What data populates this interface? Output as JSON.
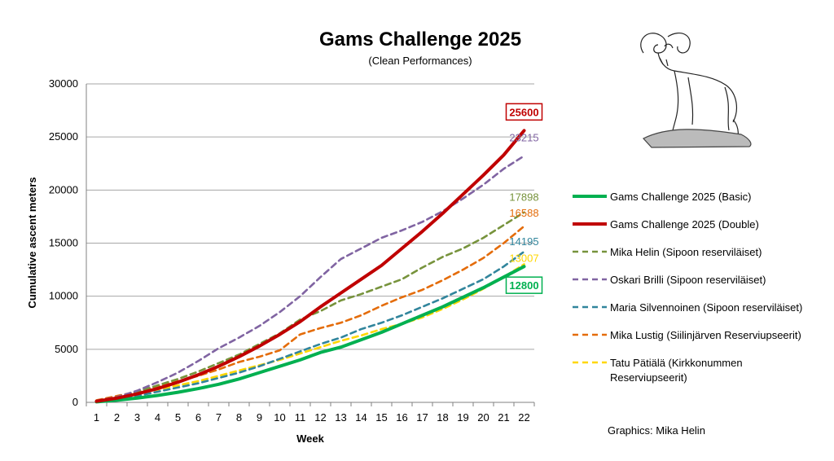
{
  "chart_data": {
    "type": "line",
    "title": "Gams Challenge 2025",
    "subtitle": "(Clean Performances)",
    "xlabel": "Week",
    "ylabel": "Cumulative ascent meters",
    "ylim": [
      0,
      30000
    ],
    "yticks": [
      0,
      5000,
      10000,
      15000,
      20000,
      25000,
      30000
    ],
    "x": [
      1,
      2,
      3,
      4,
      5,
      6,
      7,
      8,
      9,
      10,
      11,
      12,
      13,
      14,
      15,
      16,
      17,
      18,
      19,
      20,
      21,
      22
    ],
    "grid": true,
    "legend_position": "right",
    "series": [
      {
        "name": "Gams Challenge 2025 (Basic)",
        "color": "#00b050",
        "style": "solid",
        "values": [
          50,
          200,
          400,
          650,
          950,
          1300,
          1700,
          2200,
          2800,
          3400,
          4000,
          4700,
          5200,
          5900,
          6600,
          7400,
          8200,
          9000,
          9900,
          10800,
          11800,
          12800
        ],
        "end_label": "12800",
        "end_label_boxed": true
      },
      {
        "name": "Gams Challenge 2025 (Double)",
        "color": "#c00000",
        "style": "solid",
        "values": [
          100,
          400,
          800,
          1300,
          1900,
          2600,
          3400,
          4300,
          5300,
          6400,
          7600,
          9000,
          10300,
          11600,
          12900,
          14500,
          16100,
          17800,
          19600,
          21400,
          23300,
          25600
        ],
        "end_label": "25600",
        "end_label_boxed": true
      },
      {
        "name": "Mika Helin (Sipoon reserviläiset)",
        "color": "#77933c",
        "style": "dashed",
        "values": [
          100,
          500,
          1000,
          1600,
          2200,
          2900,
          3700,
          4500,
          5500,
          6500,
          7800,
          8600,
          9600,
          10200,
          10900,
          11600,
          12700,
          13700,
          14500,
          15500,
          16700,
          17898
        ],
        "end_label": "17898"
      },
      {
        "name": "Oskari Brilli (Sipoon reserviläiset)",
        "color": "#8064a2",
        "style": "dashed",
        "values": [
          150,
          500,
          1100,
          1900,
          2800,
          3900,
          5100,
          6100,
          7200,
          8500,
          10000,
          11800,
          13500,
          14500,
          15500,
          16200,
          17000,
          18000,
          19200,
          20500,
          22000,
          23215
        ],
        "end_label": "23215"
      },
      {
        "name": "Maria Silvennoinen (Sipoon reserviläiset)",
        "color": "#31859c",
        "style": "dashed",
        "values": [
          100,
          300,
          600,
          1000,
          1400,
          1800,
          2300,
          2800,
          3400,
          4100,
          4800,
          5500,
          6100,
          6900,
          7500,
          8200,
          9000,
          9800,
          10700,
          11600,
          12800,
          14195
        ],
        "end_label": "14195"
      },
      {
        "name": "Mika Lustig (Siilinjärven Reserviupseerit)",
        "color": "#e46c0a",
        "style": "dashed",
        "values": [
          200,
          600,
          1000,
          1500,
          2000,
          2500,
          3100,
          3800,
          4300,
          4900,
          6400,
          7000,
          7500,
          8200,
          9100,
          9900,
          10600,
          11500,
          12500,
          13600,
          15000,
          16588
        ],
        "end_label": "16588"
      },
      {
        "name": "Tatu Pätiälä (Kirkkonummen Reserviupseerit)",
        "color": "#ffd700",
        "style": "dashed",
        "values": [
          150,
          450,
          800,
          1200,
          1600,
          2000,
          2500,
          3000,
          3500,
          4000,
          4600,
          5200,
          5800,
          6300,
          6900,
          7400,
          8000,
          8800,
          9700,
          10700,
          11800,
          13007
        ],
        "end_label": "13007"
      }
    ]
  },
  "legend": {
    "lines": [
      [
        "Gams Challenge 2025 (Basic)"
      ],
      [
        "Gams Challenge 2025 (Double)"
      ],
      [
        "Mika Helin (Sipoon reserviläiset)"
      ],
      [
        "Oskari Brilli (Sipoon reserviläiset)"
      ],
      [
        "Maria Silvennoinen (Sipoon reserviläiset)"
      ],
      [
        "Mika Lustig (Siilinjärven Reserviupseerit)"
      ],
      [
        "Tatu Pätiälä (Kirkkonummen",
        "Reserviupseerit)"
      ]
    ]
  },
  "credit": "Graphics: Mika Helin",
  "logo_icon": "ram-icon"
}
